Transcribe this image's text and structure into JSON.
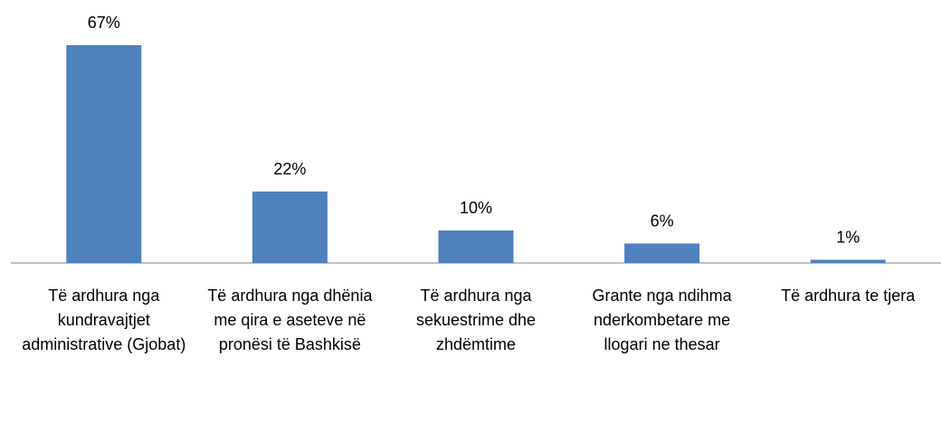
{
  "chart_data": {
    "type": "bar",
    "categories": [
      "Të ardhura nga kundravajtjet administrative (Gjobat)",
      "Të ardhura nga dhënia me qira e aseteve në pronësi të Bashkisë",
      "Të ardhura nga sekuestrime dhe zhdëmtime",
      "Grante nga ndihma nderkombetare me llogari ne thesar",
      "Të ardhura te tjera"
    ],
    "values": [
      67,
      22,
      10,
      6,
      1
    ],
    "value_labels": [
      "67%",
      "22%",
      "10%",
      "6%",
      "1%"
    ],
    "color": "#4f81bd"
  }
}
